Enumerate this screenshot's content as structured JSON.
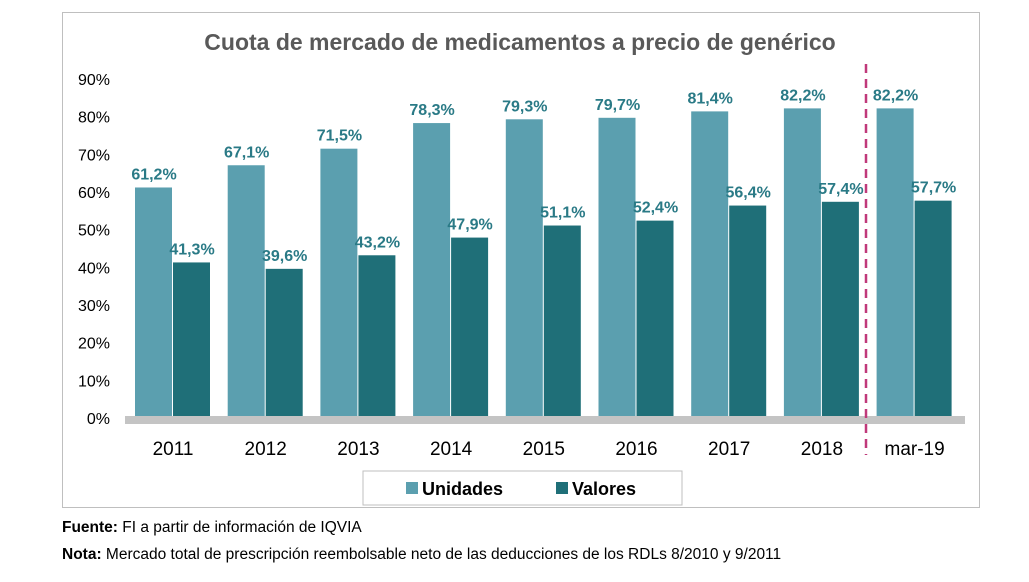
{
  "chart_data": {
    "type": "bar",
    "title": "Cuota de mercado de medicamentos a precio de genérico",
    "categories": [
      "2011",
      "2012",
      "2013",
      "2014",
      "2015",
      "2016",
      "2017",
      "2018",
      "mar-19"
    ],
    "series": [
      {
        "name": "Unidades",
        "color": "#5b9faf",
        "values": [
          61.2,
          67.1,
          71.5,
          78.3,
          79.3,
          79.7,
          81.4,
          82.2,
          82.2
        ],
        "labels": [
          "61,2%",
          "67,1%",
          "71,5%",
          "78,3%",
          "79,3%",
          "79,7%",
          "81,4%",
          "82,2%",
          "82,2%"
        ]
      },
      {
        "name": "Valores",
        "color": "#1f6f78",
        "values": [
          41.3,
          39.6,
          43.2,
          47.9,
          51.1,
          52.4,
          56.4,
          57.4,
          57.7
        ],
        "labels": [
          "41,3%",
          "39,6%",
          "43,2%",
          "47,9%",
          "51,1%",
          "52,4%",
          "56,4%",
          "57,4%",
          "57,7%"
        ]
      }
    ],
    "ylim": [
      0,
      90
    ],
    "yticks": [
      0,
      10,
      20,
      30,
      40,
      50,
      60,
      70,
      80,
      90
    ],
    "ytick_labels": [
      "0%",
      "10%",
      "20%",
      "30%",
      "40%",
      "50%",
      "60%",
      "70%",
      "80%",
      "90%"
    ],
    "grid": false,
    "legend_position": "bottom-center",
    "annotations": {
      "dashed_separator": "between 2018 and mar-19",
      "separator_color": "#c0397a"
    },
    "label_color": "#2a7a86",
    "axis_color": "#bfbfbf"
  },
  "notes": {
    "source_key": "Fuente:",
    "source_text": " FI a partir de información de IQVIA",
    "note_key": "Nota:",
    "note_text": " Mercado total de prescripción reembolsable neto de las deducciones de los RDLs 8/2010 y 9/2011"
  }
}
